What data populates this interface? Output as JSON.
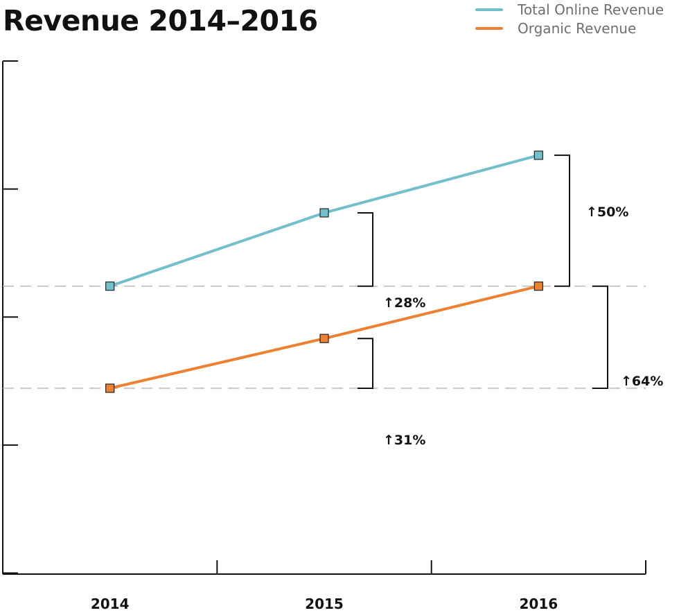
{
  "chart_data": {
    "type": "line",
    "title": "Revenue 2014–2016",
    "categories": [
      "2014",
      "2015",
      "2016"
    ],
    "xlabel": "",
    "ylabel": "",
    "series": [
      {
        "name": "Total Online Revenue",
        "color": "#72c0cc",
        "values": [
          1.0,
          1.28,
          1.5
        ]
      },
      {
        "name": "Organic Revenue",
        "color": "#ec8231",
        "values": [
          0.61,
          0.8,
          1.0
        ]
      }
    ],
    "reference_lines": [
      1.0,
      0.61
    ],
    "annotations": [
      {
        "label": "↑28%",
        "series": "Total Online Revenue",
        "from": "2014",
        "to": "2015"
      },
      {
        "label": "↑50%",
        "series": "Total Online Revenue",
        "from": "2014",
        "to": "2016"
      },
      {
        "label": "↑31%",
        "series": "Organic Revenue",
        "from": "2014",
        "to": "2015"
      },
      {
        "label": "↑64%",
        "series": "Organic Revenue",
        "from": "2014",
        "to": "2016"
      }
    ],
    "ylim": [
      -0.1,
      1.86
    ],
    "legend": "top-right",
    "grid": false
  }
}
